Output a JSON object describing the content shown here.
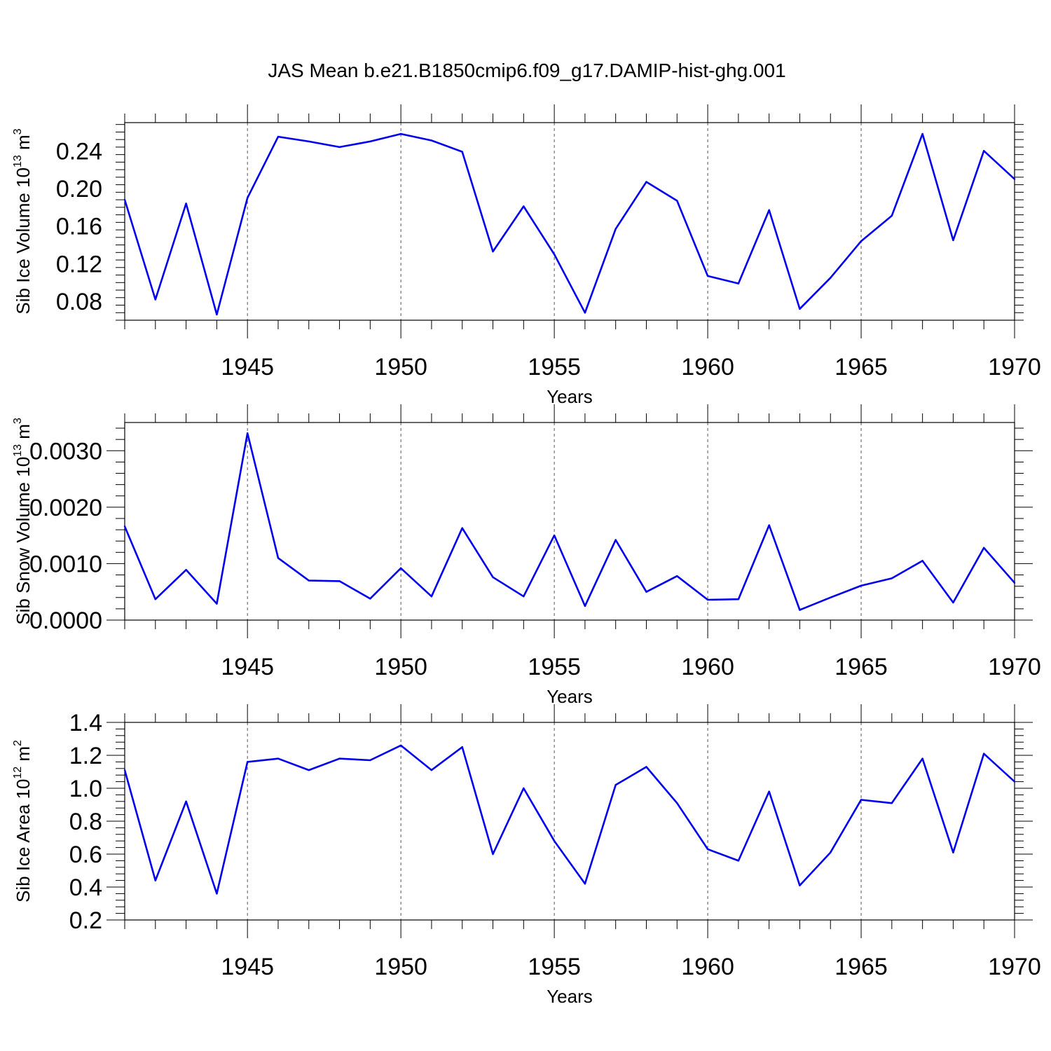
{
  "title": "JAS Mean b.e21.B1850cmip6.f09_g17.DAMIP-hist-ghg.001",
  "chart_data": [
    {
      "type": "line",
      "ylabel": "Sib Ice Volume 10",
      "ylabel_exp": "13",
      "ylabel_unit": " m",
      "ylabel_unit_exp": "3",
      "xlabel": "Years",
      "xlim": [
        1941,
        1970
      ],
      "ylim": [
        0.06,
        0.27
      ],
      "yticks": [
        0.08,
        0.12,
        0.16,
        0.2,
        0.24
      ],
      "ytick_labels": [
        "0.08",
        "0.12",
        "0.16",
        "0.20",
        "0.24"
      ],
      "xticks": [
        1945,
        1950,
        1955,
        1960,
        1965,
        1970
      ],
      "xtick_labels": [
        "1945",
        "1950",
        "1955",
        "1960",
        "1965",
        "1970"
      ],
      "color": "#0000ee",
      "x": [
        1941,
        1942,
        1943,
        1944,
        1945,
        1946,
        1947,
        1948,
        1949,
        1950,
        1951,
        1952,
        1953,
        1954,
        1955,
        1956,
        1957,
        1958,
        1959,
        1960,
        1961,
        1962,
        1963,
        1964,
        1965,
        1966,
        1967,
        1968,
        1969,
        1970
      ],
      "values": [
        0.188,
        0.082,
        0.184,
        0.066,
        0.19,
        0.255,
        0.25,
        0.244,
        0.25,
        0.258,
        0.251,
        0.239,
        0.133,
        0.181,
        0.13,
        0.068,
        0.157,
        0.207,
        0.187,
        0.107,
        0.099,
        0.177,
        0.072,
        0.105,
        0.144,
        0.171,
        0.258,
        0.145,
        0.24,
        0.21
      ]
    },
    {
      "type": "line",
      "ylabel": "Sib Snow Volume 10",
      "ylabel_exp": "13",
      "ylabel_unit": " m",
      "ylabel_unit_exp": "3",
      "xlabel": "Years",
      "xlim": [
        1941,
        1970
      ],
      "ylim": [
        0.0,
        0.0035
      ],
      "yticks": [
        0.0,
        0.001,
        0.002,
        0.003
      ],
      "ytick_labels": [
        "0.0000",
        "0.0010",
        "0.0020",
        "0.0030"
      ],
      "xticks": [
        1945,
        1950,
        1955,
        1960,
        1965,
        1970
      ],
      "xtick_labels": [
        "1945",
        "1950",
        "1955",
        "1960",
        "1965",
        "1970"
      ],
      "color": "#0000ee",
      "x": [
        1941,
        1942,
        1943,
        1944,
        1945,
        1946,
        1947,
        1948,
        1949,
        1950,
        1951,
        1952,
        1953,
        1954,
        1955,
        1956,
        1957,
        1958,
        1959,
        1960,
        1961,
        1962,
        1963,
        1964,
        1965,
        1966,
        1967,
        1968,
        1969,
        1970
      ],
      "values": [
        0.00166,
        0.00037,
        0.00089,
        0.00029,
        0.00331,
        0.0011,
        0.0007,
        0.00069,
        0.00038,
        0.00092,
        0.00042,
        0.00163,
        0.00076,
        0.00042,
        0.0015,
        0.00025,
        0.00142,
        0.0005,
        0.00078,
        0.00036,
        0.00037,
        0.00168,
        0.00018,
        0.0004,
        0.00061,
        0.00074,
        0.00105,
        0.00031,
        0.00128,
        0.00066
      ]
    },
    {
      "type": "line",
      "ylabel": "Sib Ice Area 10",
      "ylabel_exp": "12",
      "ylabel_unit": " m",
      "ylabel_unit_exp": "2",
      "xlabel": "Years",
      "xlim": [
        1941,
        1970
      ],
      "ylim": [
        0.2,
        1.4
      ],
      "yticks": [
        0.2,
        0.4,
        0.6,
        0.8,
        1.0,
        1.2,
        1.4
      ],
      "ytick_labels": [
        "0.2",
        "0.4",
        "0.6",
        "0.8",
        "1.0",
        "1.2",
        "1.4"
      ],
      "xticks": [
        1945,
        1950,
        1955,
        1960,
        1965,
        1970
      ],
      "xtick_labels": [
        "1945",
        "1950",
        "1955",
        "1960",
        "1965",
        "1970"
      ],
      "color": "#0000ee",
      "x": [
        1941,
        1942,
        1943,
        1944,
        1945,
        1946,
        1947,
        1948,
        1949,
        1950,
        1951,
        1952,
        1953,
        1954,
        1955,
        1956,
        1957,
        1958,
        1959,
        1960,
        1961,
        1962,
        1963,
        1964,
        1965,
        1966,
        1967,
        1968,
        1969,
        1970
      ],
      "values": [
        1.11,
        0.44,
        0.92,
        0.36,
        1.16,
        1.18,
        1.11,
        1.18,
        1.17,
        1.26,
        1.11,
        1.25,
        0.6,
        1.0,
        0.68,
        0.42,
        1.02,
        1.13,
        0.91,
        0.63,
        0.56,
        0.98,
        0.41,
        0.61,
        0.93,
        0.91,
        1.18,
        0.61,
        1.21,
        1.04
      ]
    }
  ]
}
